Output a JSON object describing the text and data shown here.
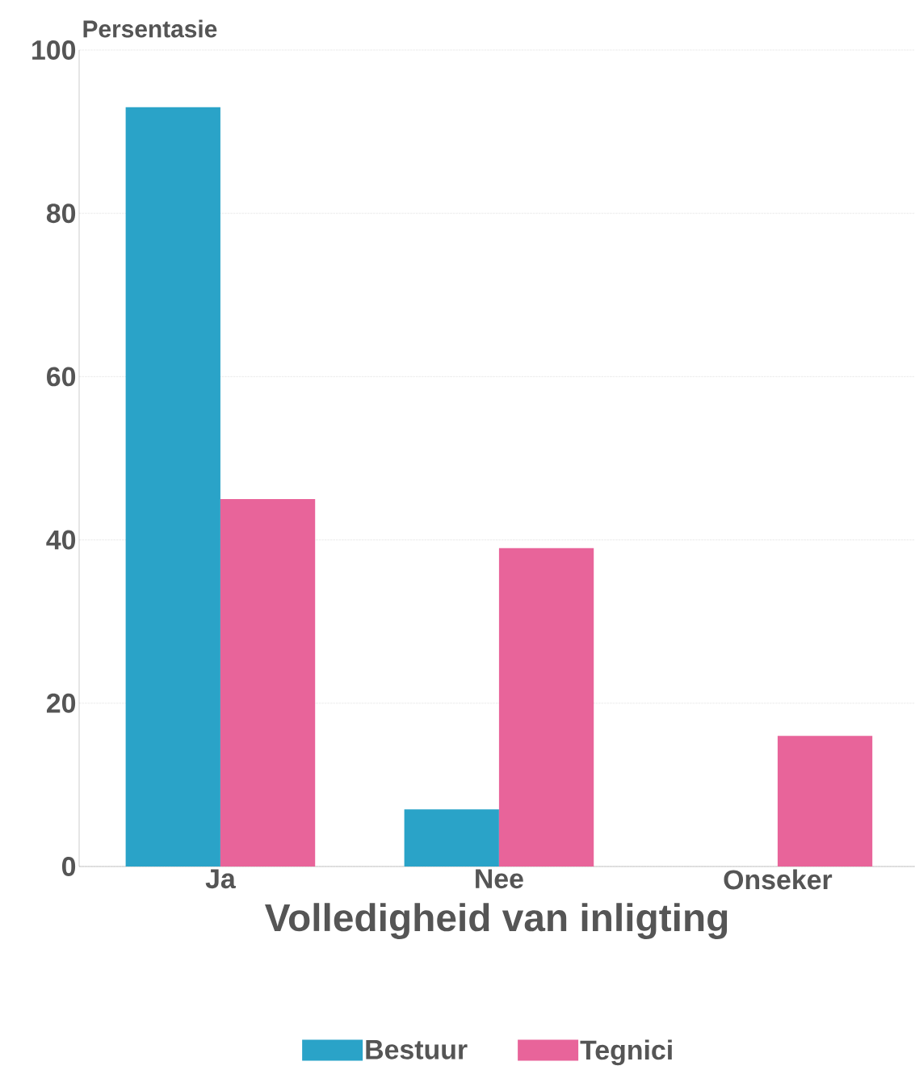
{
  "chart_data": {
    "type": "bar",
    "ylabel": "Persentasie",
    "xlabel": "Volledigheid van inligting",
    "categories": [
      "Ja",
      "Nee",
      "Onseker"
    ],
    "series": [
      {
        "name": "Bestuur",
        "color": "#2aa3c8",
        "values": [
          93,
          7,
          0
        ]
      },
      {
        "name": "Tegnici",
        "color": "#e8649a",
        "values": [
          45,
          39,
          16
        ]
      }
    ],
    "ylim": [
      0,
      100
    ],
    "yticks": [
      0,
      20,
      40,
      60,
      80,
      100
    ],
    "grid": "y",
    "legend": "bottom"
  }
}
